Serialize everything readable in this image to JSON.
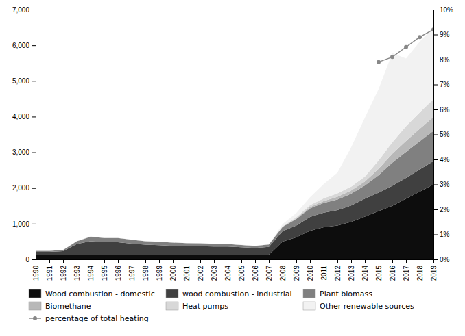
{
  "chart_data": {
    "type": "area",
    "stacked": true,
    "x": [
      1990,
      1991,
      1992,
      1993,
      1994,
      1995,
      1996,
      1997,
      1998,
      1999,
      2000,
      2001,
      2002,
      2003,
      2004,
      2005,
      2006,
      2007,
      2008,
      2009,
      2010,
      2011,
      2012,
      2013,
      2014,
      2015,
      2016,
      2017,
      2018,
      2019
    ],
    "xlim": [
      1990,
      2019
    ],
    "xticks": [
      1990,
      1991,
      1992,
      1993,
      1994,
      1995,
      1996,
      1997,
      1998,
      1999,
      2000,
      2001,
      2002,
      2003,
      2004,
      2005,
      2006,
      2007,
      2008,
      2009,
      2010,
      2011,
      2012,
      2013,
      2014,
      2015,
      2016,
      2017,
      2018,
      2019
    ],
    "ylim": [
      0,
      7000
    ],
    "yticks": [
      0,
      {
        "value": 1000,
        "label": "1,000"
      },
      {
        "value": 2000,
        "label": "2,000"
      },
      {
        "value": 3000,
        "label": "3,000"
      },
      {
        "value": 4000,
        "label": "4,000"
      },
      {
        "value": 5000,
        "label": "5,000"
      },
      {
        "value": 6000,
        "label": "6,000"
      },
      {
        "value": 7000,
        "label": "7,000"
      }
    ],
    "y2lim": [
      0,
      10
    ],
    "y2ticks": [
      {
        "value": 0,
        "label": "0%"
      },
      {
        "value": 1,
        "label": "1%"
      },
      {
        "value": 2,
        "label": "2%"
      },
      {
        "value": 3,
        "label": "3%"
      },
      {
        "value": 4,
        "label": "4%"
      },
      {
        "value": 5,
        "label": "5%"
      },
      {
        "value": 6,
        "label": "6%"
      },
      {
        "value": 7,
        "label": "7%"
      },
      {
        "value": 8,
        "label": "8%"
      },
      {
        "value": 9,
        "label": "9%"
      },
      {
        "value": 10,
        "label": "10%"
      }
    ],
    "grid": false,
    "legend": "bottom",
    "series": [
      {
        "name": "Wood combustion - domestic",
        "color": "#0d0d0d",
        "values": [
          130,
          130,
          130,
          130,
          130,
          130,
          130,
          130,
          130,
          130,
          130,
          130,
          130,
          130,
          130,
          130,
          130,
          130,
          500,
          620,
          800,
          900,
          950,
          1050,
          1200,
          1350,
          1500,
          1700,
          1900,
          2100
        ]
      },
      {
        "name": "wood combustion - industrial",
        "color": "#404040",
        "values": [
          80,
          80,
          100,
          300,
          380,
          350,
          350,
          310,
          280,
          270,
          250,
          240,
          240,
          230,
          230,
          210,
          190,
          220,
          290,
          330,
          390,
          410,
          430,
          460,
          500,
          520,
          560,
          580,
          620,
          650
        ]
      },
      {
        "name": "Plant biomass",
        "color": "#808080",
        "values": [
          30,
          30,
          35,
          80,
          130,
          120,
          120,
          110,
          100,
          95,
          90,
          85,
          80,
          75,
          70,
          65,
          60,
          65,
          120,
          180,
          240,
          270,
          300,
          330,
          370,
          490,
          650,
          730,
          790,
          850
        ]
      },
      {
        "name": "Biomethane",
        "color": "#b8b8b8",
        "values": [
          0,
          0,
          0,
          0,
          0,
          0,
          0,
          0,
          0,
          0,
          0,
          0,
          0,
          0,
          0,
          0,
          0,
          0,
          5,
          15,
          35,
          55,
          75,
          90,
          110,
          180,
          250,
          310,
          350,
          390
        ]
      },
      {
        "name": "Heat pumps",
        "color": "#d8d8d8",
        "values": [
          0,
          0,
          0,
          0,
          0,
          0,
          0,
          0,
          0,
          0,
          0,
          0,
          0,
          0,
          0,
          0,
          0,
          0,
          15,
          35,
          55,
          75,
          95,
          110,
          140,
          230,
          320,
          410,
          460,
          500
        ]
      },
      {
        "name": "Other renewable sources",
        "color": "#f2f2f2",
        "values": [
          5,
          5,
          5,
          5,
          5,
          5,
          5,
          5,
          5,
          5,
          5,
          5,
          5,
          5,
          5,
          5,
          5,
          5,
          60,
          120,
          220,
          400,
          580,
          1100,
          1650,
          2000,
          2500,
          1900,
          1980,
          2010
        ]
      },
      {
        "name": "percentage of total heating",
        "type": "line",
        "axis": "y2",
        "color": "#888888",
        "marker": "circle",
        "values": [
          null,
          null,
          null,
          null,
          null,
          null,
          null,
          null,
          null,
          null,
          null,
          null,
          null,
          null,
          null,
          null,
          null,
          null,
          null,
          null,
          null,
          null,
          null,
          null,
          null,
          7.9,
          8.1,
          8.5,
          8.9,
          9.2
        ]
      }
    ]
  }
}
